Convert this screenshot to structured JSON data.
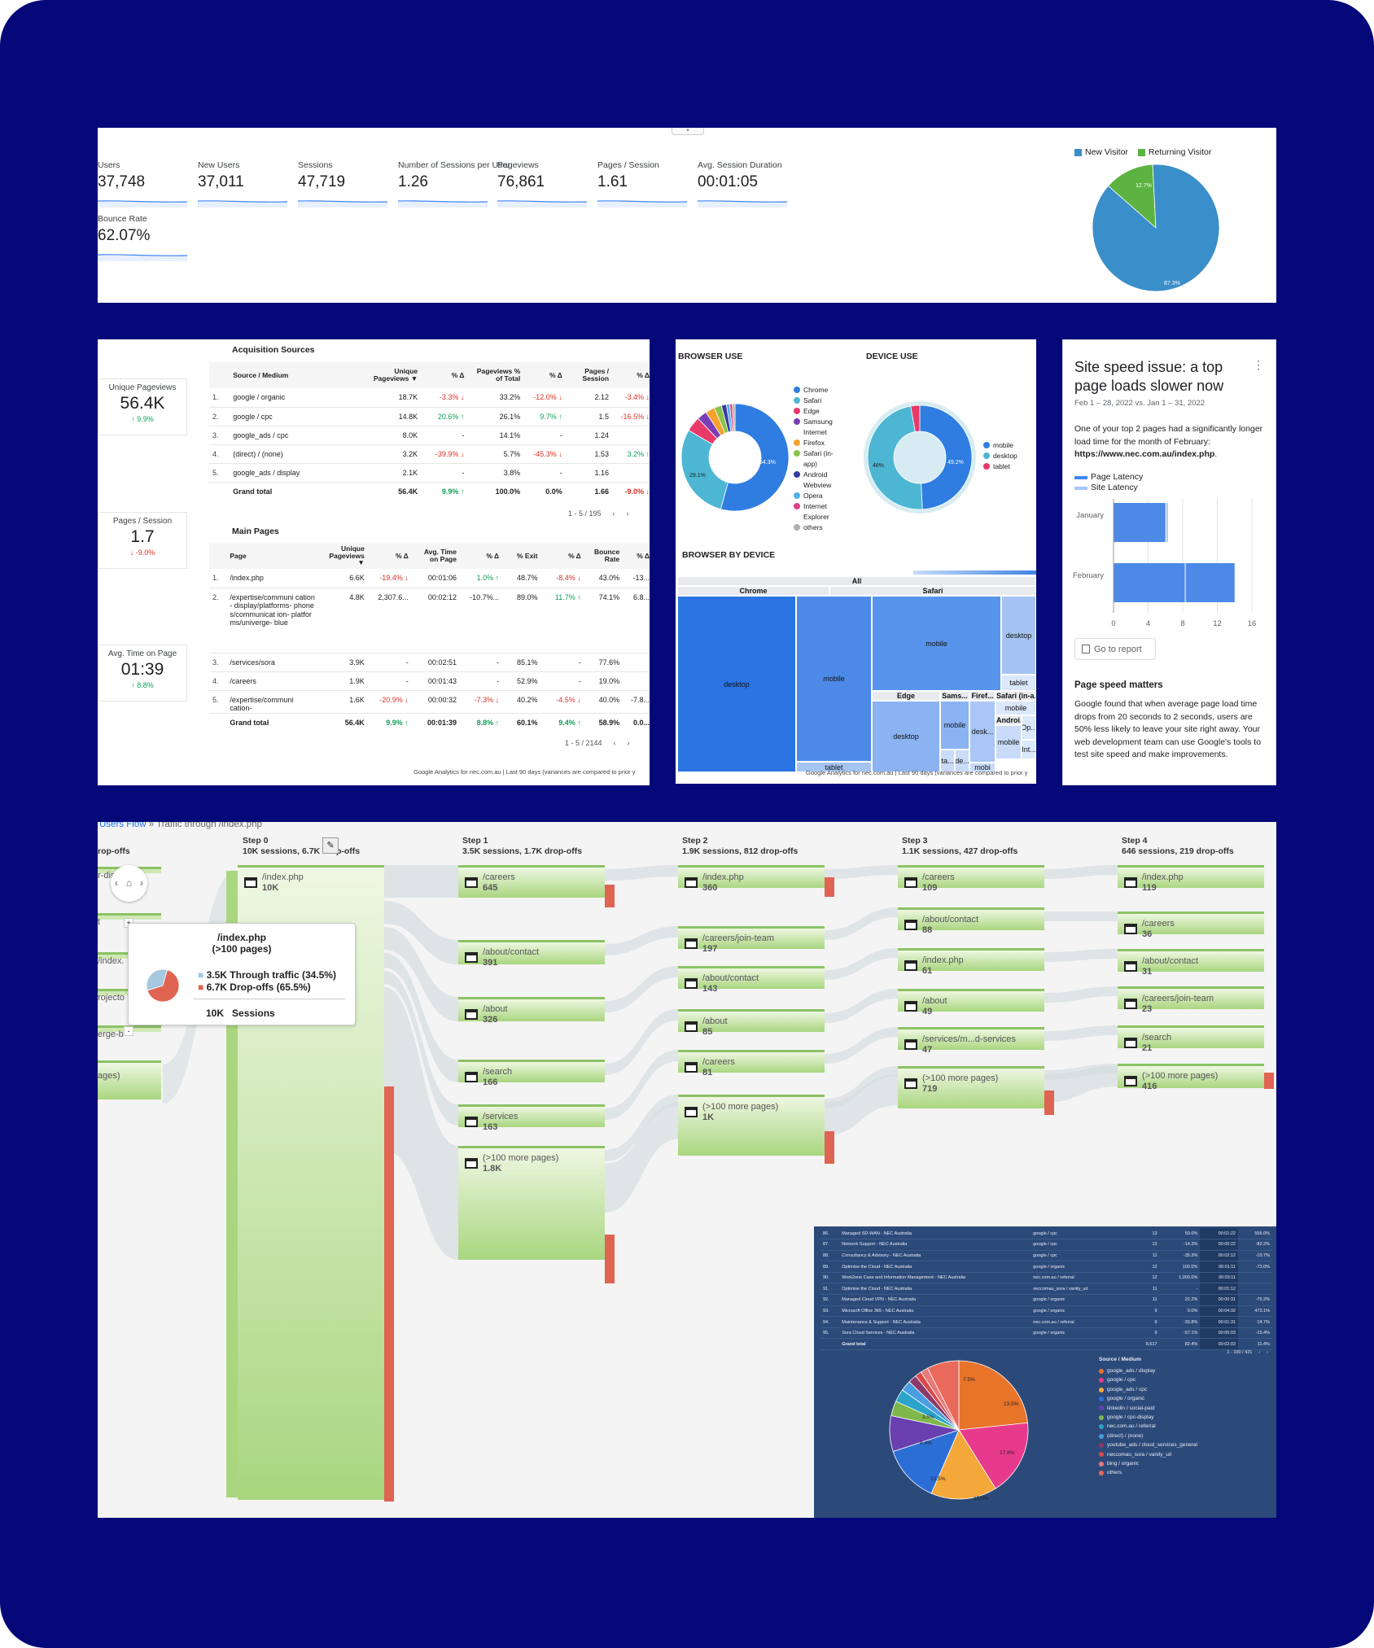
{
  "overview": {
    "metrics": [
      {
        "label": "Users",
        "value": "37,748"
      },
      {
        "label": "New Users",
        "value": "37,011"
      },
      {
        "label": "Sessions",
        "value": "47,719"
      },
      {
        "label": "Number of Sessions per User",
        "value": "1.26"
      },
      {
        "label": "Pageviews",
        "value": "76,861"
      },
      {
        "label": "Pages / Session",
        "value": "1.61"
      },
      {
        "label": "Avg. Session Duration",
        "value": "00:01:05"
      },
      {
        "label": "Bounce Rate",
        "value": "62.07%"
      }
    ],
    "visitor_legend": [
      {
        "label": "New Visitor",
        "color": "#3a8ec9"
      },
      {
        "label": "Returning Visitor",
        "color": "#5cb341"
      }
    ],
    "visitor_pie": {
      "new_pct": 87.3,
      "returning_pct": 12.7,
      "new_label": "87.3%",
      "returning_label": "12.7%"
    }
  },
  "acquisition": {
    "scorecards": [
      {
        "title": "Unique Pageviews",
        "value": "56.4K",
        "delta": "↑ 9.9%",
        "dir": "up"
      },
      {
        "title": "Pages / Session",
        "value": "1.7",
        "delta": "↓ -9.0%",
        "dir": "down"
      },
      {
        "title": "Avg. Time on Page",
        "value": "01:39",
        "delta": "↑ 8.8%",
        "dir": "up"
      }
    ],
    "sources_title": "Acquisition Sources",
    "sources_headers": [
      "",
      "Source / Medium",
      "Unique Pageviews ▼",
      "% Δ",
      "Pageviews % of Total",
      "% Δ",
      "Pages / Session",
      "% Δ"
    ],
    "sources_rows": [
      [
        "1.",
        "google / organic",
        "18.7K",
        "-3.3% ↓",
        "33.2%",
        "-12.0% ↓",
        "2.12",
        "-3.4% ↓"
      ],
      [
        "2.",
        "google / cpc",
        "14.8K",
        "20.6% ↑",
        "26.1%",
        "9.7% ↑",
        "1.5",
        "-16.5% ↓"
      ],
      [
        "3.",
        "google_ads / cpc",
        "8.0K",
        "-",
        "14.1%",
        "-",
        "1.24",
        ""
      ],
      [
        "4.",
        "(direct) / (none)",
        "3.2K",
        "-39.9% ↓",
        "5.7%",
        "-45.3% ↓",
        "1.53",
        "3.2% ↑"
      ],
      [
        "5.",
        "google_ads / display",
        "2.1K",
        "-",
        "3.8%",
        "-",
        "1.16",
        ""
      ]
    ],
    "sources_total": [
      "",
      "Grand total",
      "56.4K",
      "9.9% ↑",
      "100.0%",
      "0.0%",
      "1.66",
      "-9.0% ↓"
    ],
    "sources_pager": "1 - 5 / 195",
    "pages_title": "Main Pages",
    "pages_headers": [
      "",
      "Page",
      "Unique Pageviews ▼",
      "% Δ",
      "Avg. Time on Page",
      "% Δ",
      "% Exit",
      "% Δ",
      "Bounce Rate",
      "% Δ"
    ],
    "pages_rows": [
      [
        "1.",
        "/index.php",
        "6.6K",
        "-19.4% ↓",
        "00:01:06",
        "1.0% ↑",
        "48.7%",
        "-8.4% ↓",
        "43.0%",
        "-13..."
      ],
      [
        "2.",
        "/expertise/communi cation- display/platforms- phones/communicat ion- platforms/univerge- blue",
        "4.8K",
        "2,307.6...",
        "00:02:12",
        "-10.7%...",
        "89.0%",
        "11.7% ↑",
        "74.1%",
        "6.8..."
      ],
      [
        "3.",
        "/services/sora",
        "3.9K",
        "-",
        "00:02:51",
        "-",
        "85.1%",
        "-",
        "77.6%",
        ""
      ],
      [
        "4.",
        "/careers",
        "1.9K",
        "-",
        "00:01:43",
        "-",
        "52.9%",
        "-",
        "19.0%",
        ""
      ],
      [
        "5.",
        "/expertise/communi cation-",
        "1.6K",
        "-20.9% ↓",
        "00:00:32",
        "-7.3% ↓",
        "40.2%",
        "-4.5% ↓",
        "40.0%",
        "-7.8..."
      ]
    ],
    "pages_total": [
      "",
      "Grand total",
      "56.4K",
      "9.9% ↑",
      "00:01:39",
      "8.8% ↑",
      "60.1%",
      "9.4% ↑",
      "58.9%",
      "0.0..."
    ],
    "pages_pager": "1 - 5 / 2144",
    "footer": "Google Analytics for nec.com.au | Last 90 days (variances are compared to prior y"
  },
  "browsers": {
    "browser_title": "BROWSER USE",
    "device_title": "DEVICE USE",
    "browser_legend": [
      {
        "label": "Chrome",
        "color": "#2f7de1"
      },
      {
        "label": "Safari",
        "color": "#4db6d3"
      },
      {
        "label": "Edge",
        "color": "#e8396b"
      },
      {
        "label": "Samsung Internet",
        "color": "#7b3fb5"
      },
      {
        "label": "Firefox",
        "color": "#f4a22d"
      },
      {
        "label": "Safari (in-app)",
        "color": "#8bc34a"
      },
      {
        "label": "Android Webview",
        "color": "#3b3ba0"
      },
      {
        "label": "Opera",
        "color": "#4fb3e8"
      },
      {
        "label": "Internet Explorer",
        "color": "#e0408a"
      },
      {
        "label": "others",
        "color": "#b0b0b0"
      }
    ],
    "browser_slices": [
      54.3,
      29.1,
      4.5,
      3.0,
      2.8,
      2.2,
      1.5,
      1.0,
      0.8,
      0.8
    ],
    "browser_labels": {
      "a": "54.3%",
      "b": "29.1%"
    },
    "device_legend": [
      {
        "label": "mobile",
        "color": "#2f7de1"
      },
      {
        "label": "desktop",
        "color": "#4db6d3"
      },
      {
        "label": "tablet",
        "color": "#e8396b"
      }
    ],
    "device_slices": [
      49.2,
      48.0,
      2.8
    ],
    "device_labels": {
      "a": "49.2%",
      "b": "48%"
    },
    "bydevice_title": "BROWSER BY DEVICE",
    "treemap": {
      "all": "All",
      "chrome": "Chrome",
      "safari": "Safari",
      "chrome_desktop": "desktop",
      "chrome_mobile": "mobile",
      "chrome_tablet": "tablet",
      "safari_mobile": "mobile",
      "safari_desktop": "desktop",
      "safari_tablet": "tablet",
      "edge": "Edge",
      "edge_desktop": "desktop",
      "sams": "Sams...",
      "sams_mobile": "mobile",
      "firef": "Firef...",
      "firef_desk": "desk...",
      "safari_inapp": "Safari (in-a...",
      "inapp_mobile": "mobile",
      "androi": "Androi...",
      "androi_mobile": "mobile",
      "op": "Op...",
      "int": "Int...",
      "ta": "ta...",
      "de": "de...",
      "mobi": "mobi"
    },
    "footer": "Google Analytics for nec.com.au | Last 90 days (variances are compared to prior y"
  },
  "speed": {
    "title": "Site speed issue: a top page loads slower now",
    "menu": "⋮",
    "dates": "Feb 1 – 28, 2022 vs. Jan 1 – 31, 2022",
    "body": "One of your top 2 pages had a significantly longer load time for the month of February:",
    "url": "https://www.nec.com.au/index.php",
    "url_suffix": ".",
    "legend_page": "Page Latency",
    "legend_site": "Site Latency",
    "chart_labels": [
      "January",
      "February"
    ],
    "ticks": [
      "0",
      "4",
      "8",
      "12",
      "16"
    ],
    "go_report": "Go to report",
    "matters_title": "Page speed matters",
    "matters_body": "Google found that when average page load time drops from 20 seconds to 2 seconds, users are 50% less likely to leave your site right away. Your web development team can use Google's tools to test site speed and make improvements."
  },
  "chart_data": {
    "type": "bar",
    "categories": [
      "January",
      "February"
    ],
    "series": [
      {
        "name": "Page Latency",
        "values": [
          6,
          14
        ]
      },
      {
        "name": "Site Latency",
        "values": [
          6.2,
          8.3
        ]
      }
    ],
    "xlim": [
      0,
      16
    ],
    "orientation": "horizontal",
    "ticks": [
      0,
      4,
      8,
      12,
      16
    ]
  },
  "flow": {
    "crumb_link": "Users Flow",
    "crumb_rest": " » Traffic through /index.php",
    "steps": [
      {
        "title": "Step 0",
        "sub": "10K sessions, 6.7K drop-offs"
      },
      {
        "title": "Step 1",
        "sub": "3.5K sessions, 1.7K drop-offs"
      },
      {
        "title": "Step 2",
        "sub": "1.9K sessions, 812 drop-offs"
      },
      {
        "title": "Step 3",
        "sub": "1.1K sessions, 427 drop-offs"
      },
      {
        "title": "Step 4",
        "sub": "646 sessions, 219 drop-offs"
      }
    ],
    "left_partial": {
      "header": "rop-offs",
      "labels": [
        "r-dis",
        "t",
        "/index.",
        "rojecto",
        "erge-b",
        "ages)"
      ]
    },
    "step0_node": {
      "name": "/index.php",
      "count": "10K"
    },
    "step1": [
      {
        "name": "/careers",
        "count": "645"
      },
      {
        "name": "/about/contact",
        "count": "391"
      },
      {
        "name": "/about",
        "count": "326"
      },
      {
        "name": "/search",
        "count": "166"
      },
      {
        "name": "/services",
        "count": "163"
      },
      {
        "name": "(>100 more pages)",
        "count": "1.8K"
      }
    ],
    "step2": [
      {
        "name": "/index.php",
        "count": "360"
      },
      {
        "name": "/careers/join-team",
        "count": "197"
      },
      {
        "name": "/about/contact",
        "count": "143"
      },
      {
        "name": "/about",
        "count": "85"
      },
      {
        "name": "/careers",
        "count": "81"
      },
      {
        "name": "(>100 more pages)",
        "count": "1K"
      }
    ],
    "step3": [
      {
        "name": "/careers",
        "count": "109"
      },
      {
        "name": "/about/contact",
        "count": "88"
      },
      {
        "name": "/index.php",
        "count": "61"
      },
      {
        "name": "/about",
        "count": "49"
      },
      {
        "name": "/services/m...d-services",
        "count": "47"
      },
      {
        "name": "(>100 more pages)",
        "count": "719"
      }
    ],
    "step4": [
      {
        "name": "/index.php",
        "count": "119"
      },
      {
        "name": "/careers",
        "count": "36"
      },
      {
        "name": "/about/contact",
        "count": "31"
      },
      {
        "name": "/careers/join-team",
        "count": "23"
      },
      {
        "name": "/search",
        "count": "21"
      },
      {
        "name": "(>100 more pages)",
        "count": "416"
      }
    ],
    "tooltip": {
      "title": "/index.php",
      "subtitle": "(>100 pages)",
      "through_value": "3.5K",
      "through_label": "Through traffic (34.5%)",
      "drop_value": "6.7K",
      "drop_label": "Drop-offs (65.5%)",
      "sessions_value": "10K",
      "sessions_label": "Sessions",
      "through_pct": 34.5
    },
    "home_nav": {
      "prev": "‹",
      "home": "⌂",
      "next": "›"
    },
    "zoom": {
      "plus": "+",
      "minus": "-"
    }
  },
  "dark_report": {
    "rows": [
      [
        "86.",
        "Managed SD-WAN - NEC Australia",
        "google / cpc",
        "13",
        "50.0%",
        "00:01:22",
        "556.0%"
      ],
      [
        "87.",
        "Network Support - NEC Australia",
        "google / cpc",
        "13",
        "-14.3%",
        "00:00:22",
        "-82.2%"
      ],
      [
        "88.",
        "Consultancy & Advisory - NEC Australia",
        "google / cpc",
        "11",
        "-35.3%",
        "00:02:12",
        "-10.7%"
      ],
      [
        "89.",
        "Optimise the Cloud - NEC Australia",
        "google / organic",
        "12",
        "100.0%",
        "00:01:11",
        "-73.0%"
      ],
      [
        "90.",
        "Work2one Case and Information Management - NEC Australia",
        "nec.com.au / referral",
        "12",
        "1,000.0%",
        "00:03:11",
        ""
      ],
      [
        "91.",
        "Optimise the Cloud - NEC Australia",
        "neccomau_sora / vanity_url",
        "11",
        "-",
        "00:01:12",
        ""
      ],
      [
        "92.",
        "Managed Cloud VPN - NEC Australia",
        "google / organic",
        "11",
        "22.2%",
        "00:00:31",
        "-75.2%"
      ],
      [
        "93.",
        "Microsoft Office 365 - NEC Australia",
        "google / organic",
        "9",
        "0.0%",
        "00:04:32",
        "473.1%"
      ],
      [
        "94.",
        "Maintenance & Support - NEC Australia",
        "nec.com.au / referral",
        "9",
        "-30.8%",
        "00:01:31",
        "14.7%"
      ],
      [
        "95.",
        "Sora Cloud Services - NEC Australia",
        "google / organic",
        "9",
        "-57.1%",
        "00:05:03",
        "-15.4%"
      ],
      [
        "",
        "Grand total",
        "",
        "8,617",
        "82.4%",
        "00:02:03",
        "11.4%"
      ]
    ],
    "pager": "1 - 100 / 421",
    "legend_title": "Source / Medium",
    "legend": [
      {
        "label": "google_ads / display",
        "color": "#e8742a"
      },
      {
        "label": "google / cpc",
        "color": "#e83a8c"
      },
      {
        "label": "google_ads / cpc",
        "color": "#f5a83a"
      },
      {
        "label": "google / organic",
        "color": "#2b6fd6"
      },
      {
        "label": "linkedin / social-paid",
        "color": "#6a3fb0"
      },
      {
        "label": "google / cpc-display",
        "color": "#7fb84a"
      },
      {
        "label": "nec.com.au / referral",
        "color": "#2aa4c9"
      },
      {
        "label": "(direct) / (none)",
        "color": "#4a9de0"
      },
      {
        "label": "youtube_ads / cloud_services_general",
        "color": "#8a3a6a"
      },
      {
        "label": "neccomau_sora / vanity_url",
        "color": "#d84a4a"
      },
      {
        "label": "bing / organic",
        "color": "#e87a7a"
      },
      {
        "label": "others",
        "color": "#e96a5a"
      }
    ],
    "pie": [
      23.5,
      17.8,
      15.5,
      13.5,
      8.4,
      3.5,
      3.0,
      2.5,
      2.0,
      1.5,
      1.8,
      7.5
    ],
    "pie_labels": [
      "23.5%",
      "17.8%",
      "15.5%",
      "13.5%",
      "8.4%",
      "3.5%",
      "7.5%"
    ]
  }
}
